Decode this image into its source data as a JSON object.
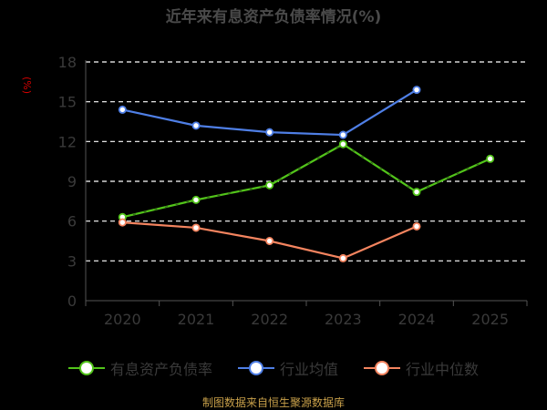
{
  "chart_data": {
    "type": "line",
    "title": "近年来有息资产负债率情况(%)",
    "unit_label": "(%)",
    "categories": [
      "2020",
      "2021",
      "2022",
      "2023",
      "2024",
      "2025"
    ],
    "ylim": [
      0,
      18
    ],
    "yticks": [
      "18",
      "15",
      "12",
      "9",
      "6",
      "3",
      "0"
    ],
    "grid": true,
    "legend_position": "bottom",
    "series": [
      {
        "name": "有息资产负债率",
        "color": "#52c41a",
        "dashed_segments": true,
        "values": [
          6.3,
          7.6,
          8.7,
          11.8,
          8.2,
          10.7
        ]
      },
      {
        "name": "行业均值",
        "color": "#4f7fe6",
        "dashed_segments": false,
        "values": [
          14.4,
          13.2,
          12.7,
          12.5,
          15.9,
          null
        ]
      },
      {
        "name": "行业中位数",
        "color": "#f4845f",
        "dashed_segments": false,
        "values": [
          5.9,
          5.5,
          4.5,
          3.2,
          5.6,
          null
        ]
      }
    ]
  },
  "source": "制图数据来自恒生聚源数据库"
}
